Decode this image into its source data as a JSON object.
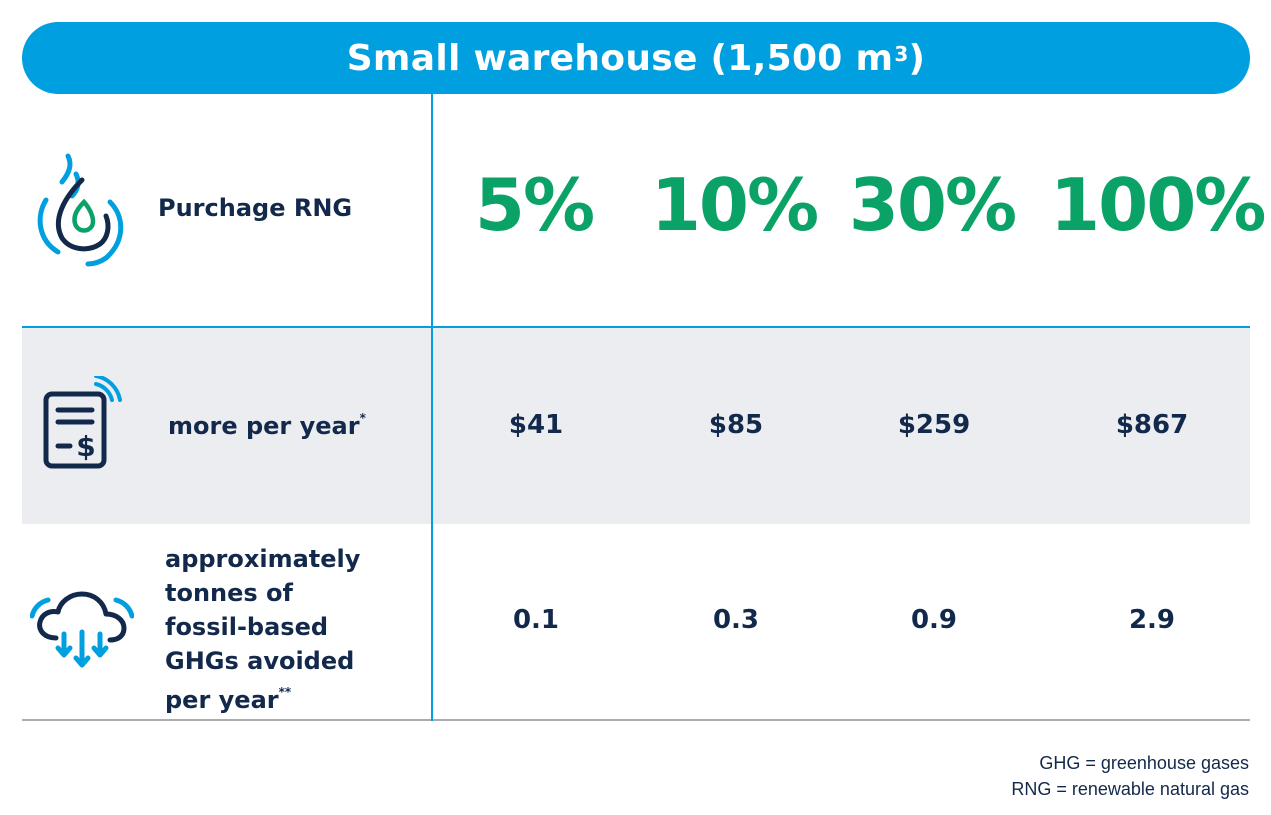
{
  "title": {
    "text": "Small warehouse (1,500 m",
    "superscript": "3",
    "suffix": ")"
  },
  "rows": {
    "header": {
      "label": "Purchage RNG",
      "icon": "gas-flame-icon",
      "percentages": [
        "5%",
        "10%",
        "30%",
        "100%"
      ]
    },
    "cost": {
      "label": "more per year",
      "marker": "*",
      "icon": "bill-dollar-icon",
      "values": [
        "$41",
        "$85",
        "$259",
        "$867"
      ]
    },
    "ghg": {
      "label_lines": [
        "approximately",
        "tonnes of",
        "fossil-based",
        "GHGs avoided",
        "per year"
      ],
      "marker": "**",
      "icon": "cloud-down-arrows-icon",
      "values": [
        "0.1",
        "0.3",
        "0.9",
        "2.9"
      ]
    }
  },
  "footnotes": [
    "GHG = greenhouse gases",
    "RNG = renewable natural gas"
  ],
  "colors": {
    "accent_blue": "#009fdf",
    "navy": "#13294b",
    "green": "#0aa267",
    "row_shade": "#ebedf0"
  }
}
